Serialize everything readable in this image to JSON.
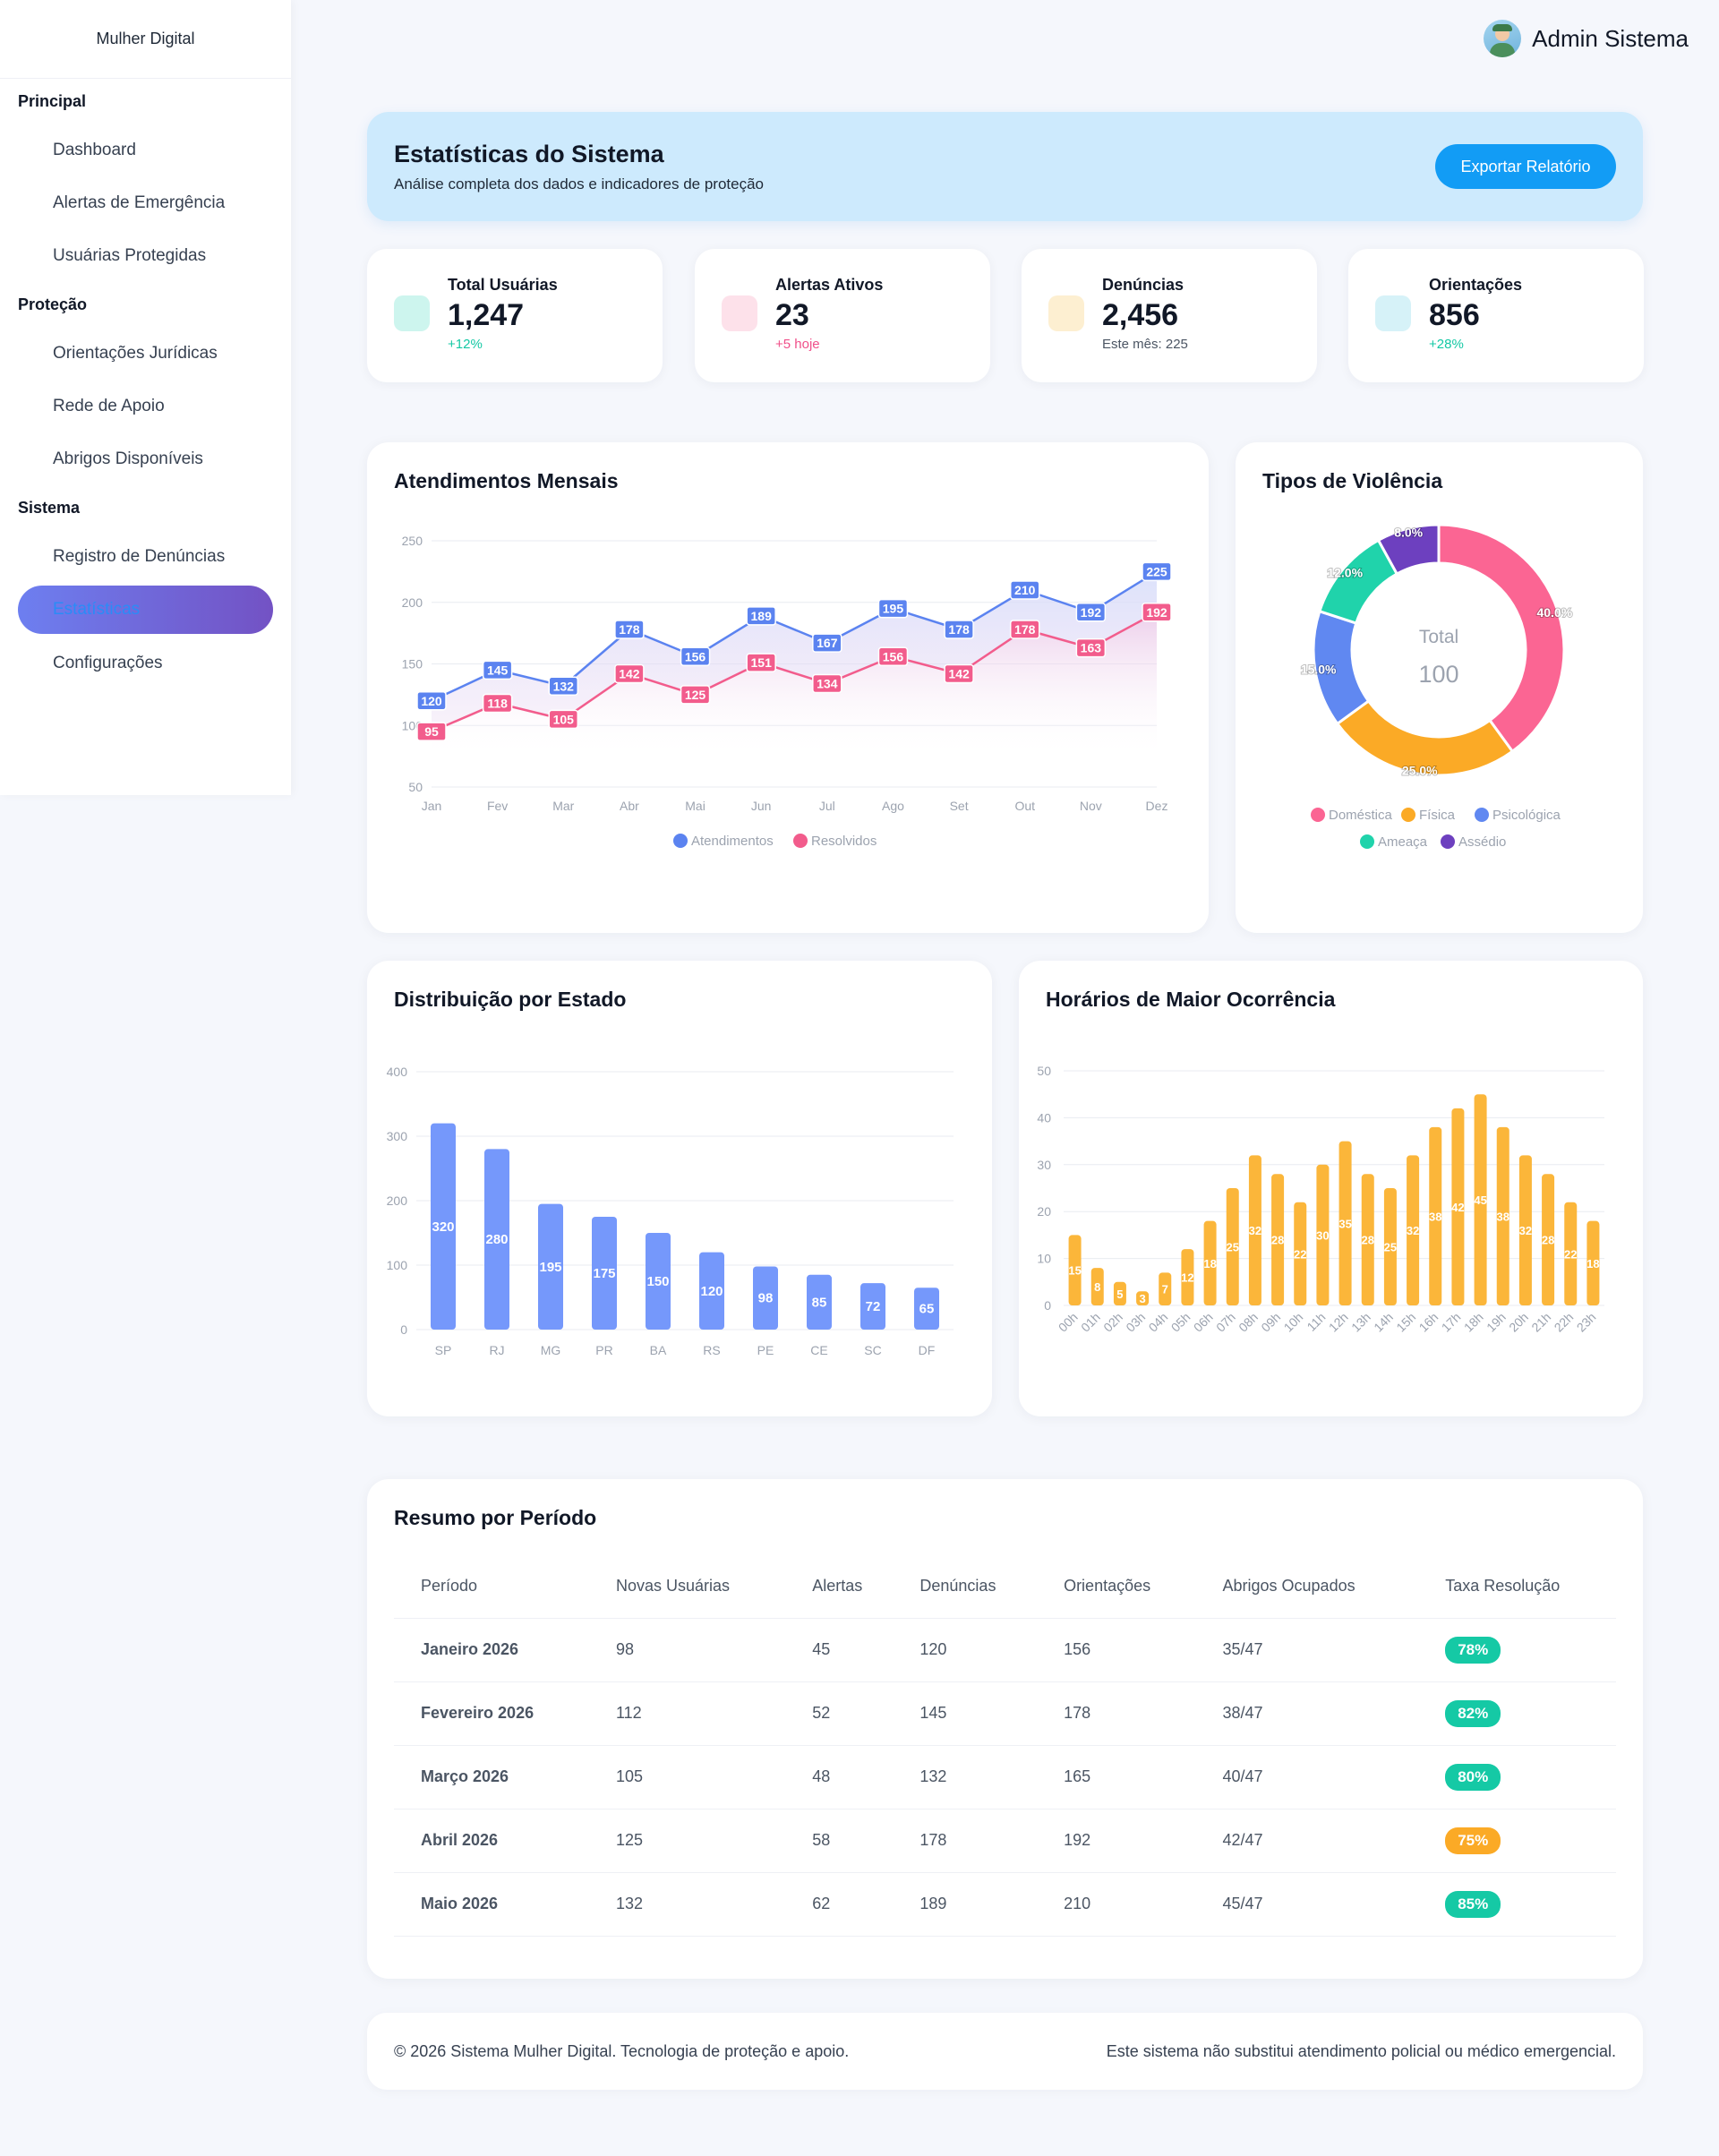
{
  "sidebar": {
    "brand": "Mulher Digital",
    "sections": [
      {
        "title": "Principal",
        "items": [
          "Dashboard",
          "Alertas de Emergência",
          "Usuárias Protegidas"
        ]
      },
      {
        "title": "Proteção",
        "items": [
          "Orientações Jurídicas",
          "Rede de Apoio",
          "Abrigos Disponíveis"
        ]
      },
      {
        "title": "Sistema",
        "items": [
          "Registro de Denúncias",
          "Estatísticas",
          "Configurações"
        ]
      }
    ],
    "active_item": "Estatísticas"
  },
  "topbar": {
    "username": "Admin Sistema",
    "avatar_icon": "user-avatar"
  },
  "header": {
    "title": "Estatísticas do Sistema",
    "subtitle": "Análise completa dos dados e indicadores de proteção",
    "export_label": "Exportar Relatório"
  },
  "stats": [
    {
      "label": "Total Usuárias",
      "value": "1,247",
      "sub": "+12%",
      "sub_color": "#14c8a4",
      "icon_color": "#cdf5ee"
    },
    {
      "label": "Alertas Ativos",
      "value": "23",
      "sub": "+5 hoje",
      "sub_color": "#f0508a",
      "icon_color": "#fde1ea"
    },
    {
      "label": "Denúncias",
      "value": "2,456",
      "sub": "Este mês: 225",
      "sub_color": "#4b5563",
      "icon_color": "#fdefd1"
    },
    {
      "label": "Orientações",
      "value": "856",
      "sub": "+28%",
      "sub_color": "#14c8a4",
      "icon_color": "#d6f2f8"
    }
  ],
  "monthly": {
    "title": "Atendimentos Mensais",
    "chart_data": {
      "type": "line",
      "categories": [
        "Jan",
        "Fev",
        "Mar",
        "Abr",
        "Mai",
        "Jun",
        "Jul",
        "Ago",
        "Set",
        "Out",
        "Nov",
        "Dez"
      ],
      "series": [
        {
          "name": "Atendimentos",
          "color": "#5b83f0",
          "values": [
            120,
            145,
            132,
            178,
            156,
            189,
            167,
            195,
            178,
            210,
            192,
            225
          ]
        },
        {
          "name": "Resolvidos",
          "color": "#f25c8c",
          "values": [
            95,
            118,
            105,
            142,
            125,
            151,
            134,
            156,
            142,
            178,
            163,
            192
          ]
        }
      ],
      "yticks": [
        50,
        100,
        150,
        200,
        250
      ],
      "ylim": [
        50,
        250
      ]
    }
  },
  "violence": {
    "title": "Tipos de Violência",
    "center_label": "Total",
    "center_value": "100",
    "chart_data": {
      "type": "pie",
      "labels": [
        "Doméstica",
        "Física",
        "Psicológica",
        "Ameaça",
        "Assédio"
      ],
      "values": [
        40.0,
        25.0,
        15.0,
        12.0,
        8.0
      ],
      "value_labels": [
        "40.0%",
        "25.0%",
        "15.0%",
        "12.0%",
        "8.0%"
      ],
      "colors": [
        "#fb6593",
        "#fbaa26",
        "#6088f1",
        "#20d3ab",
        "#6d40bf"
      ]
    }
  },
  "states": {
    "title": "Distribuição por Estado",
    "chart_data": {
      "type": "bar",
      "categories": [
        "SP",
        "RJ",
        "MG",
        "PR",
        "BA",
        "RS",
        "PE",
        "CE",
        "SC",
        "DF"
      ],
      "values": [
        320,
        280,
        195,
        175,
        150,
        120,
        98,
        85,
        72,
        65
      ],
      "yticks": [
        0,
        100,
        200,
        300,
        400
      ],
      "ylim": [
        0,
        400
      ],
      "color": "#7598fb"
    }
  },
  "hours": {
    "title": "Horários de Maior Ocorrência",
    "chart_data": {
      "type": "bar",
      "categories": [
        "00h",
        "01h",
        "02h",
        "03h",
        "04h",
        "05h",
        "06h",
        "07h",
        "08h",
        "09h",
        "10h",
        "11h",
        "12h",
        "13h",
        "14h",
        "15h",
        "16h",
        "17h",
        "18h",
        "19h",
        "20h",
        "21h",
        "22h",
        "23h"
      ],
      "values": [
        15,
        8,
        5,
        3,
        7,
        12,
        18,
        25,
        32,
        28,
        22,
        30,
        35,
        28,
        25,
        32,
        38,
        42,
        45,
        38,
        32,
        28,
        22,
        18
      ],
      "yticks": [
        0,
        10,
        20,
        30,
        40,
        50
      ],
      "ylim": [
        0,
        50
      ],
      "color": "#fbb63a"
    }
  },
  "summary": {
    "title": "Resumo por Período",
    "columns": [
      "Período",
      "Novas Usuárias",
      "Alertas",
      "Denúncias",
      "Orientações",
      "Abrigos Ocupados",
      "Taxa Resolução"
    ],
    "rows": [
      {
        "period": "Janeiro 2026",
        "novas": "98",
        "alertas": "45",
        "denuncias": "120",
        "orientacoes": "156",
        "abrigos": "35/47",
        "taxa": "78%",
        "taxa_color": "#15c9a5"
      },
      {
        "period": "Fevereiro 2026",
        "novas": "112",
        "alertas": "52",
        "denuncias": "145",
        "orientacoes": "178",
        "abrigos": "38/47",
        "taxa": "82%",
        "taxa_color": "#15c9a5"
      },
      {
        "period": "Março 2026",
        "novas": "105",
        "alertas": "48",
        "denuncias": "132",
        "orientacoes": "165",
        "abrigos": "40/47",
        "taxa": "80%",
        "taxa_color": "#15c9a5"
      },
      {
        "period": "Abril 2026",
        "novas": "125",
        "alertas": "58",
        "denuncias": "178",
        "orientacoes": "192",
        "abrigos": "42/47",
        "taxa": "75%",
        "taxa_color": "#fbaa26"
      },
      {
        "period": "Maio 2026",
        "novas": "132",
        "alertas": "62",
        "denuncias": "189",
        "orientacoes": "210",
        "abrigos": "45/47",
        "taxa": "85%",
        "taxa_color": "#15c9a5"
      }
    ]
  },
  "footer": {
    "left": "© 2026 Sistema Mulher Digital. Tecnologia de proteção e apoio.",
    "right": "Este sistema não substitui atendimento policial ou médico emergencial."
  }
}
